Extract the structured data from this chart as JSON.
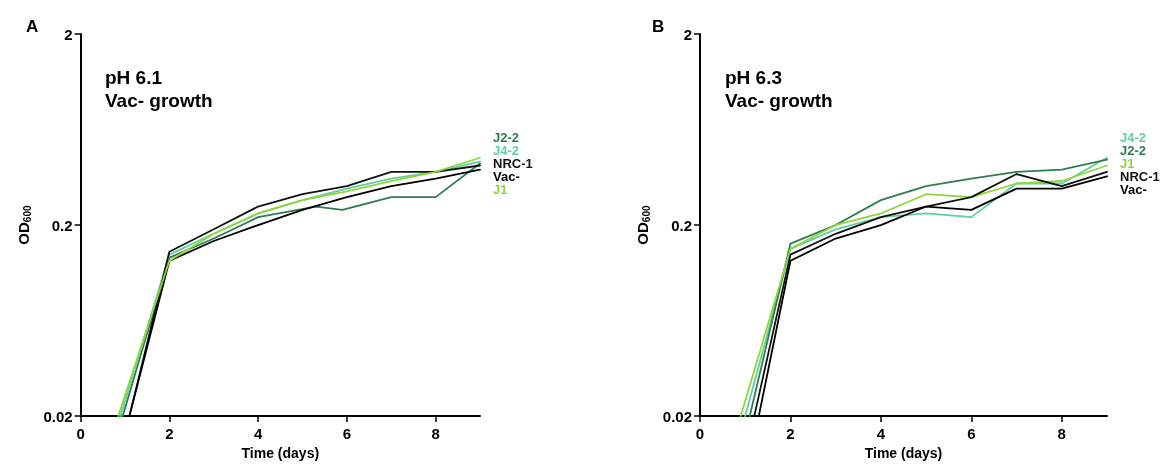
{
  "chart_data": [
    {
      "type": "line",
      "title": "pH 6.1",
      "subtitle": "Vac- growth",
      "annotations": [
        "A"
      ],
      "xlabel": "Time (days)",
      "ylabel": "OD$_{600}$",
      "log": "y",
      "xlim": [
        0,
        9
      ],
      "xticks": [
        0,
        2,
        4,
        6,
        8
      ],
      "ylim": [
        0.02,
        2
      ],
      "yticks": [
        0.02,
        0.2,
        2
      ],
      "grid": false,
      "legend": "right",
      "marker": "none",
      "line_style": "solid",
      "series": [
        {
          "name": "J2-2",
          "color": "#2e7d52",
          "x": [
            0.95,
            2,
            3,
            4,
            5.3,
            5.9,
            7,
            8,
            9
          ],
          "values": [
            0.02,
            0.135,
            0.17,
            0.22,
            0.25,
            0.24,
            0.28,
            0.28,
            0.42
          ]
        },
        {
          "name": "J4-2",
          "color": "#5fcfa0",
          "x": [
            0.9,
            2,
            3,
            4,
            5,
            6,
            7,
            8,
            9
          ],
          "values": [
            0.02,
            0.14,
            0.18,
            0.23,
            0.27,
            0.31,
            0.35,
            0.38,
            0.43
          ]
        },
        {
          "name": "NRC-1",
          "color": "#111111",
          "x": [
            1.1,
            2,
            3,
            4,
            5,
            6,
            7,
            8,
            9
          ],
          "values": [
            0.02,
            0.145,
            0.19,
            0.25,
            0.29,
            0.32,
            0.38,
            0.38,
            0.41
          ]
        },
        {
          "name": "Vac-",
          "color": "#000000",
          "x": [
            1.1,
            2,
            3,
            4,
            5,
            6,
            7,
            8,
            9
          ],
          "values": [
            0.02,
            0.13,
            0.165,
            0.2,
            0.24,
            0.28,
            0.32,
            0.35,
            0.39
          ]
        },
        {
          "name": "J1",
          "color": "#8fd63a",
          "x": [
            0.85,
            2,
            3,
            4,
            5,
            6,
            7,
            8,
            9
          ],
          "values": [
            0.02,
            0.13,
            0.18,
            0.23,
            0.27,
            0.3,
            0.34,
            0.38,
            0.45
          ]
        }
      ]
    },
    {
      "type": "line",
      "title": "pH 6.3",
      "subtitle": "Vac- growth",
      "annotations": [
        "B"
      ],
      "xlabel": "Time (days)",
      "ylabel": "OD$_{600}$",
      "log": "y",
      "xlim": [
        0,
        9
      ],
      "xticks": [
        0,
        2,
        4,
        6,
        8
      ],
      "ylim": [
        0.02,
        2
      ],
      "yticks": [
        0.02,
        0.2,
        2
      ],
      "grid": false,
      "legend": "right",
      "marker": "none",
      "line_style": "solid",
      "series": [
        {
          "name": "J4-2",
          "color": "#5fcfa0",
          "x": [
            1,
            2,
            3,
            4,
            5,
            6,
            7,
            8,
            9
          ],
          "values": [
            0.02,
            0.15,
            0.19,
            0.22,
            0.23,
            0.22,
            0.33,
            0.33,
            0.45
          ]
        },
        {
          "name": "J2-2",
          "color": "#2e7d52",
          "x": [
            1.1,
            2,
            3,
            4,
            5,
            6,
            7,
            8,
            9
          ],
          "values": [
            0.02,
            0.16,
            0.2,
            0.27,
            0.32,
            0.35,
            0.38,
            0.39,
            0.44
          ]
        },
        {
          "name": "J1",
          "color": "#8fd63a",
          "x": [
            0.9,
            2,
            3,
            4,
            5,
            6,
            7,
            8,
            9
          ],
          "values": [
            0.02,
            0.15,
            0.2,
            0.23,
            0.29,
            0.28,
            0.33,
            0.34,
            0.41
          ]
        },
        {
          "name": "NRC-1",
          "color": "#111111",
          "x": [
            1.2,
            2,
            3,
            4,
            5,
            6,
            7,
            8,
            9
          ],
          "values": [
            0.02,
            0.14,
            0.18,
            0.22,
            0.25,
            0.28,
            0.37,
            0.32,
            0.38
          ]
        },
        {
          "name": "Vac-",
          "color": "#000000",
          "x": [
            1.3,
            2,
            3,
            4,
            5,
            6,
            7,
            8,
            9
          ],
          "values": [
            0.02,
            0.13,
            0.17,
            0.2,
            0.25,
            0.24,
            0.31,
            0.31,
            0.36
          ]
        }
      ]
    }
  ]
}
